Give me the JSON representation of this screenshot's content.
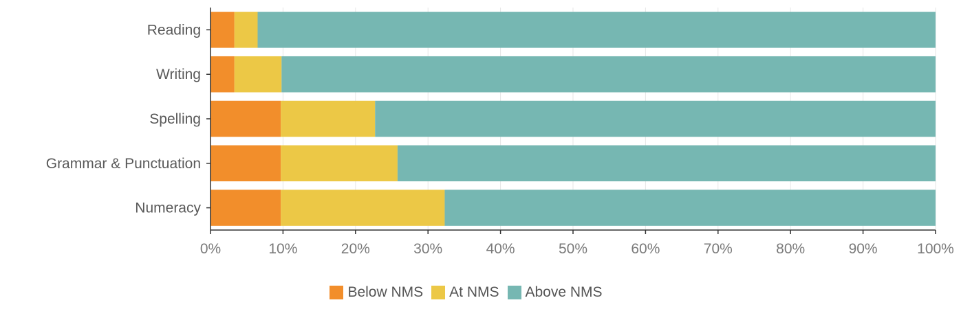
{
  "chart_data": {
    "type": "bar",
    "orientation": "horizontal",
    "stacked": true,
    "normalized": true,
    "categories": [
      "Reading",
      "Writing",
      "Spelling",
      "Grammar & Punctuation",
      "Numeracy"
    ],
    "series": [
      {
        "name": "Below NMS",
        "color": "#f28e2b",
        "values": [
          3.3,
          3.3,
          9.7,
          9.7,
          9.7
        ]
      },
      {
        "name": "At NMS",
        "color": "#ecc846",
        "values": [
          3.2,
          6.5,
          13.0,
          16.1,
          22.6
        ]
      },
      {
        "name": "Above NMS",
        "color": "#76b7b2",
        "values": [
          93.5,
          90.2,
          77.3,
          74.2,
          67.7
        ]
      }
    ],
    "xlim": [
      0,
      100
    ],
    "x_ticks": [
      "0%",
      "10%",
      "20%",
      "30%",
      "40%",
      "50%",
      "60%",
      "70%",
      "80%",
      "90%",
      "100%"
    ],
    "grid": "vertical",
    "legend_position": "bottom"
  }
}
